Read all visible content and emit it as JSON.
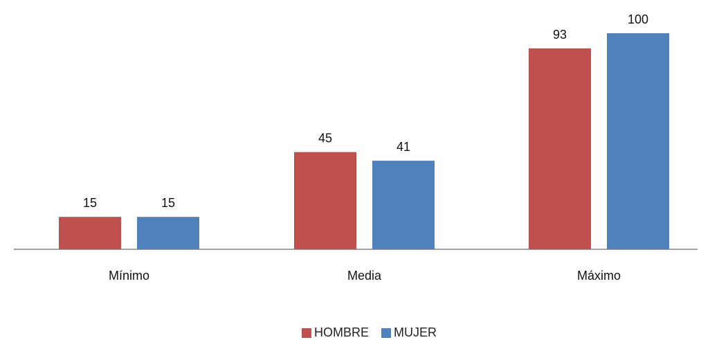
{
  "chart_data": {
    "type": "bar",
    "title": "",
    "xlabel": "",
    "ylabel": "",
    "ylim": [
      0,
      100
    ],
    "grid": false,
    "legend_position": "bottom",
    "categories": [
      "Mínimo",
      "Media",
      "Máximo"
    ],
    "series": [
      {
        "name": "HOMBRE",
        "color": "#c0504d",
        "values": [
          15,
          45,
          93
        ]
      },
      {
        "name": "MUJER",
        "color": "#4f81bd",
        "values": [
          15,
          41,
          100
        ]
      }
    ]
  }
}
